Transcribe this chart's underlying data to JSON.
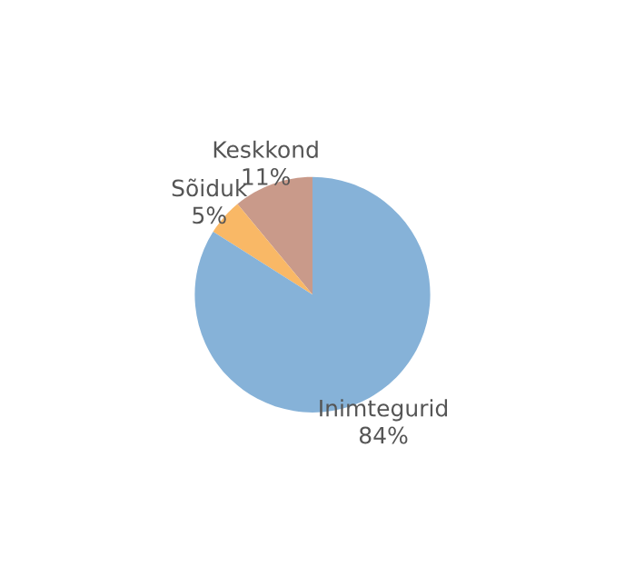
{
  "chart_data": {
    "type": "pie",
    "categories": [
      "Keskkond",
      "Sõiduk",
      "Inimtegurid"
    ],
    "values": [
      11,
      5,
      84
    ],
    "value_labels": [
      "11%",
      "5%",
      "84%"
    ],
    "colors": [
      "#c99a8a",
      "#f9b866",
      "#86b2d8"
    ]
  }
}
